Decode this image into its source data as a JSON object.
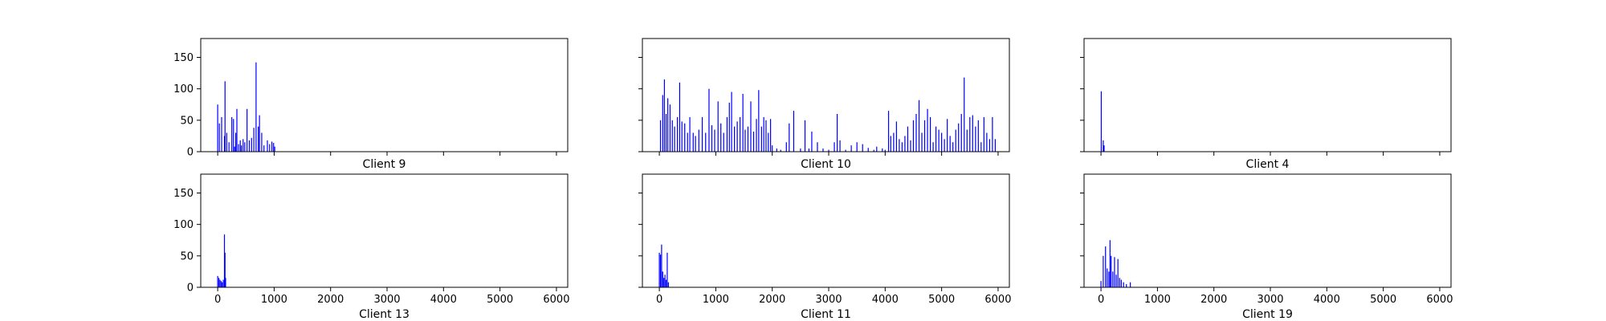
{
  "chart_data": [
    {
      "type": "bar",
      "title": "Client 9",
      "xlim": [
        -300,
        6200
      ],
      "ylim": [
        0,
        180
      ],
      "xticks": [
        0,
        1000,
        2000,
        3000,
        4000,
        5000,
        6000
      ],
      "yticks": [
        0,
        50,
        100,
        150
      ],
      "show_x_tick_labels": false,
      "show_y_tick_labels": true,
      "bars": [
        [
          0,
          75
        ],
        [
          30,
          45
        ],
        [
          70,
          55
        ],
        [
          120,
          25
        ],
        [
          130,
          112
        ],
        [
          160,
          30
        ],
        [
          200,
          15
        ],
        [
          250,
          55
        ],
        [
          280,
          52
        ],
        [
          300,
          8
        ],
        [
          320,
          30
        ],
        [
          340,
          68
        ],
        [
          370,
          12
        ],
        [
          400,
          18
        ],
        [
          420,
          10
        ],
        [
          450,
          20
        ],
        [
          480,
          15
        ],
        [
          520,
          68
        ],
        [
          560,
          18
        ],
        [
          600,
          22
        ],
        [
          640,
          38
        ],
        [
          680,
          142
        ],
        [
          720,
          40
        ],
        [
          740,
          58
        ],
        [
          780,
          30
        ],
        [
          820,
          10
        ],
        [
          880,
          18
        ],
        [
          920,
          12
        ],
        [
          960,
          16
        ],
        [
          990,
          14
        ],
        [
          1010,
          8
        ]
      ]
    },
    {
      "type": "bar",
      "title": "Client 10",
      "xlim": [
        -300,
        6200
      ],
      "ylim": [
        0,
        180
      ],
      "xticks": [
        0,
        1000,
        2000,
        3000,
        4000,
        5000,
        6000
      ],
      "yticks": [
        0,
        50,
        100,
        150
      ],
      "show_x_tick_labels": false,
      "show_y_tick_labels": false,
      "bars": [
        [
          20,
          50
        ],
        [
          60,
          90
        ],
        [
          90,
          115
        ],
        [
          120,
          60
        ],
        [
          150,
          85
        ],
        [
          190,
          75
        ],
        [
          230,
          50
        ],
        [
          270,
          40
        ],
        [
          320,
          55
        ],
        [
          360,
          110
        ],
        [
          400,
          48
        ],
        [
          450,
          45
        ],
        [
          500,
          30
        ],
        [
          540,
          55
        ],
        [
          600,
          30
        ],
        [
          640,
          25
        ],
        [
          700,
          35
        ],
        [
          760,
          55
        ],
        [
          820,
          30
        ],
        [
          880,
          100
        ],
        [
          930,
          42
        ],
        [
          980,
          35
        ],
        [
          1040,
          80
        ],
        [
          1090,
          45
        ],
        [
          1140,
          30
        ],
        [
          1200,
          55
        ],
        [
          1240,
          78
        ],
        [
          1280,
          95
        ],
        [
          1330,
          40
        ],
        [
          1380,
          48
        ],
        [
          1430,
          55
        ],
        [
          1480,
          92
        ],
        [
          1520,
          35
        ],
        [
          1570,
          40
        ],
        [
          1620,
          80
        ],
        [
          1670,
          32
        ],
        [
          1720,
          52
        ],
        [
          1760,
          98
        ],
        [
          1810,
          40
        ],
        [
          1850,
          55
        ],
        [
          1890,
          50
        ],
        [
          1930,
          30
        ],
        [
          1970,
          52
        ],
        [
          2000,
          10
        ],
        [
          2080,
          5
        ],
        [
          2150,
          3
        ],
        [
          2250,
          15
        ],
        [
          2300,
          45
        ],
        [
          2380,
          65
        ],
        [
          2500,
          5
        ],
        [
          2580,
          50
        ],
        [
          2650,
          5
        ],
        [
          2700,
          32
        ],
        [
          2800,
          15
        ],
        [
          2900,
          5
        ],
        [
          3000,
          3
        ],
        [
          3100,
          15
        ],
        [
          3150,
          60
        ],
        [
          3200,
          18
        ],
        [
          3300,
          3
        ],
        [
          3400,
          10
        ],
        [
          3500,
          15
        ],
        [
          3600,
          12
        ],
        [
          3700,
          6
        ],
        [
          3800,
          3
        ],
        [
          3850,
          8
        ],
        [
          3950,
          5
        ],
        [
          4000,
          3
        ],
        [
          4060,
          65
        ],
        [
          4100,
          25
        ],
        [
          4150,
          30
        ],
        [
          4200,
          48
        ],
        [
          4250,
          20
        ],
        [
          4300,
          15
        ],
        [
          4350,
          25
        ],
        [
          4400,
          40
        ],
        [
          4450,
          18
        ],
        [
          4500,
          50
        ],
        [
          4550,
          60
        ],
        [
          4600,
          82
        ],
        [
          4650,
          30
        ],
        [
          4700,
          50
        ],
        [
          4750,
          68
        ],
        [
          4800,
          55
        ],
        [
          4850,
          15
        ],
        [
          4900,
          40
        ],
        [
          4950,
          35
        ],
        [
          5000,
          30
        ],
        [
          5050,
          20
        ],
        [
          5100,
          52
        ],
        [
          5150,
          25
        ],
        [
          5200,
          15
        ],
        [
          5250,
          35
        ],
        [
          5300,
          45
        ],
        [
          5350,
          60
        ],
        [
          5400,
          118
        ],
        [
          5450,
          35
        ],
        [
          5500,
          55
        ],
        [
          5550,
          58
        ],
        [
          5600,
          40
        ],
        [
          5650,
          50
        ],
        [
          5700,
          15
        ],
        [
          5750,
          55
        ],
        [
          5800,
          30
        ],
        [
          5850,
          20
        ],
        [
          5900,
          55
        ],
        [
          5950,
          20
        ]
      ]
    },
    {
      "type": "bar",
      "title": "Client 4",
      "xlim": [
        -300,
        6200
      ],
      "ylim": [
        0,
        180
      ],
      "xticks": [
        0,
        1000,
        2000,
        3000,
        4000,
        5000,
        6000
      ],
      "yticks": [
        0,
        50,
        100,
        150
      ],
      "show_x_tick_labels": false,
      "show_y_tick_labels": false,
      "bars": [
        [
          5,
          96
        ],
        [
          40,
          18
        ],
        [
          55,
          10
        ]
      ]
    },
    {
      "type": "bar",
      "title": "Client 13",
      "xlim": [
        -300,
        6200
      ],
      "ylim": [
        0,
        180
      ],
      "xticks": [
        0,
        1000,
        2000,
        3000,
        4000,
        5000,
        6000
      ],
      "yticks": [
        0,
        50,
        100,
        150
      ],
      "show_x_tick_labels": true,
      "show_y_tick_labels": true,
      "bars": [
        [
          0,
          18
        ],
        [
          20,
          15
        ],
        [
          40,
          12
        ],
        [
          60,
          10
        ],
        [
          80,
          8
        ],
        [
          100,
          12
        ],
        [
          120,
          84
        ],
        [
          130,
          55
        ],
        [
          140,
          15
        ]
      ]
    },
    {
      "type": "bar",
      "title": "Client 11",
      "xlim": [
        -300,
        6200
      ],
      "ylim": [
        0,
        180
      ],
      "xticks": [
        0,
        1000,
        2000,
        3000,
        4000,
        5000,
        6000
      ],
      "yticks": [
        0,
        50,
        100,
        150
      ],
      "show_x_tick_labels": true,
      "show_y_tick_labels": false,
      "bars": [
        [
          0,
          55
        ],
        [
          20,
          52
        ],
        [
          40,
          68
        ],
        [
          60,
          25
        ],
        [
          80,
          15
        ],
        [
          100,
          20
        ],
        [
          120,
          12
        ],
        [
          140,
          55
        ],
        [
          160,
          8
        ]
      ]
    },
    {
      "type": "bar",
      "title": "Client 19",
      "xlim": [
        -300,
        6200
      ],
      "ylim": [
        0,
        180
      ],
      "xticks": [
        0,
        1000,
        2000,
        3000,
        4000,
        5000,
        6000
      ],
      "yticks": [
        0,
        50,
        100,
        150
      ],
      "show_x_tick_labels": true,
      "show_y_tick_labels": false,
      "bars": [
        [
          0,
          10
        ],
        [
          40,
          50
        ],
        [
          80,
          65
        ],
        [
          110,
          30
        ],
        [
          140,
          25
        ],
        [
          160,
          75
        ],
        [
          180,
          50
        ],
        [
          210,
          25
        ],
        [
          240,
          48
        ],
        [
          270,
          20
        ],
        [
          300,
          45
        ],
        [
          330,
          15
        ],
        [
          360,
          12
        ],
        [
          400,
          8
        ],
        [
          450,
          5
        ],
        [
          520,
          8
        ]
      ]
    }
  ],
  "colors": {
    "bar": "#0000ff",
    "axes": "#000000",
    "background": "#ffffff"
  }
}
